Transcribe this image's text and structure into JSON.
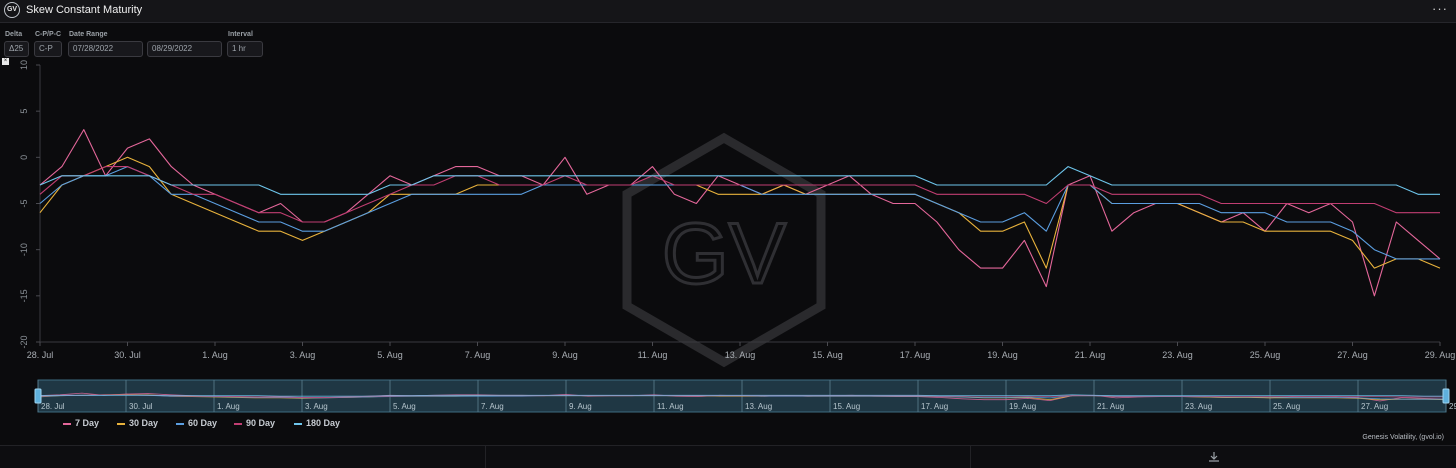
{
  "app": {
    "logo_text": "GV",
    "title": "Skew Constant Maturity",
    "more_label": "···"
  },
  "controls": {
    "delta_label": "Delta",
    "delta_value": "Δ25",
    "cp_label": "C-P/P-C",
    "cp_value": "C-P",
    "date_label": "Date Range",
    "date_start": "07/28/2022",
    "date_end": "08/29/2022",
    "interval_label": "Interval",
    "interval_value": "1 hr",
    "reset_label": "×"
  },
  "watermark": "GV",
  "credit": "Genesis Volatility, (gvol.io)",
  "colors": {
    "7d": "#e4679a",
    "30d": "#e8b23c",
    "60d": "#5b9ee0",
    "90d": "#c13e72",
    "180d": "#6ec6ec"
  },
  "chart_data": {
    "type": "line",
    "title": "",
    "xlabel": "",
    "ylabel": "",
    "xlim": [
      0,
      32
    ],
    "ylim": [
      -20,
      10
    ],
    "yticks": [
      10,
      5,
      0,
      -5,
      -10,
      -15,
      -20
    ],
    "xticks": [
      {
        "day": 0,
        "label": "28. Jul"
      },
      {
        "day": 2,
        "label": "30. Jul"
      },
      {
        "day": 4,
        "label": "1. Aug"
      },
      {
        "day": 6,
        "label": "3. Aug"
      },
      {
        "day": 8,
        "label": "5. Aug"
      },
      {
        "day": 10,
        "label": "7. Aug"
      },
      {
        "day": 12,
        "label": "9. Aug"
      },
      {
        "day": 14,
        "label": "11. Aug"
      },
      {
        "day": 16,
        "label": "13. Aug"
      },
      {
        "day": 18,
        "label": "15. Aug"
      },
      {
        "day": 20,
        "label": "17. Aug"
      },
      {
        "day": 22,
        "label": "19. Aug"
      },
      {
        "day": 24,
        "label": "21. Aug"
      },
      {
        "day": 26,
        "label": "23. Aug"
      },
      {
        "day": 28,
        "label": "25. Aug"
      },
      {
        "day": 30,
        "label": "27. Aug"
      },
      {
        "day": 32,
        "label": "29. Aug"
      }
    ],
    "x_days": [
      0,
      0.5,
      1,
      1.5,
      2,
      2.5,
      3,
      3.5,
      4,
      4.5,
      5,
      5.5,
      6,
      6.5,
      7,
      7.5,
      8,
      8.5,
      9,
      9.5,
      10,
      10.5,
      11,
      11.5,
      12,
      12.5,
      13,
      13.5,
      14,
      14.5,
      15,
      15.5,
      16,
      16.5,
      17,
      17.5,
      18,
      18.5,
      19,
      19.5,
      20,
      20.5,
      21,
      21.5,
      22,
      22.5,
      23,
      23.5,
      24,
      24.5,
      25,
      25.5,
      26,
      26.5,
      27,
      27.5,
      28,
      28.5,
      29,
      29.5,
      30,
      30.5,
      31,
      31.5,
      32
    ],
    "series": [
      {
        "name": "7 Day",
        "key": "7d",
        "values": [
          -3,
          -1,
          3,
          -2,
          1,
          2,
          -1,
          -3,
          -4,
          -5,
          -6,
          -5,
          -7,
          -7,
          -6,
          -4,
          -2,
          -3,
          -2,
          -1,
          -1,
          -2,
          -2,
          -3,
          0,
          -4,
          -3,
          -3,
          -1,
          -4,
          -5,
          -2,
          -3,
          -4,
          -3,
          -4,
          -3,
          -2,
          -4,
          -5,
          -5,
          -7,
          -10,
          -12,
          -12,
          -9,
          -14,
          -3,
          -2,
          -8,
          -6,
          -5,
          -5,
          -6,
          -7,
          -6,
          -8,
          -5,
          -6,
          -5,
          -7,
          -15,
          -7,
          -9,
          -11
        ]
      },
      {
        "name": "30 Day",
        "key": "30d",
        "values": [
          -6,
          -3,
          -2,
          -1,
          0,
          -1,
          -4,
          -5,
          -6,
          -7,
          -8,
          -8,
          -9,
          -8,
          -7,
          -6,
          -4,
          -4,
          -4,
          -4,
          -3,
          -3,
          -3,
          -3,
          -3,
          -3,
          -3,
          -3,
          -3,
          -3,
          -3,
          -4,
          -4,
          -4,
          -3,
          -4,
          -4,
          -4,
          -4,
          -4,
          -4,
          -5,
          -6,
          -8,
          -8,
          -7,
          -12,
          -3,
          -3,
          -5,
          -5,
          -5,
          -5,
          -6,
          -7,
          -7,
          -8,
          -8,
          -8,
          -8,
          -9,
          -12,
          -11,
          -11,
          -12
        ]
      },
      {
        "name": "60 Day",
        "key": "60d",
        "values": [
          -5,
          -3,
          -2,
          -2,
          -1,
          -2,
          -4,
          -4,
          -5,
          -6,
          -7,
          -7,
          -8,
          -8,
          -7,
          -6,
          -5,
          -4,
          -4,
          -4,
          -4,
          -4,
          -4,
          -3,
          -3,
          -3,
          -3,
          -3,
          -3,
          -3,
          -3,
          -3,
          -3,
          -4,
          -4,
          -4,
          -4,
          -4,
          -4,
          -4,
          -4,
          -5,
          -6,
          -7,
          -7,
          -6,
          -8,
          -3,
          -3,
          -5,
          -5,
          -5,
          -5,
          -5,
          -6,
          -6,
          -6,
          -7,
          -7,
          -7,
          -8,
          -10,
          -11,
          -11,
          -11
        ]
      },
      {
        "name": "90 Day",
        "key": "90d",
        "values": [
          -4,
          -2,
          -2,
          -1,
          -1,
          -2,
          -3,
          -4,
          -4,
          -5,
          -6,
          -6,
          -7,
          -7,
          -6,
          -5,
          -4,
          -3,
          -3,
          -2,
          -2,
          -3,
          -3,
          -3,
          -2,
          -3,
          -3,
          -3,
          -2,
          -3,
          -3,
          -3,
          -3,
          -3,
          -3,
          -3,
          -3,
          -3,
          -3,
          -3,
          -3,
          -4,
          -4,
          -4,
          -4,
          -4,
          -5,
          -3,
          -3,
          -4,
          -4,
          -4,
          -4,
          -4,
          -5,
          -5,
          -5,
          -5,
          -5,
          -5,
          -5,
          -5,
          -6,
          -6,
          -6
        ]
      },
      {
        "name": "180 Day",
        "key": "180d",
        "values": [
          -3,
          -2,
          -2,
          -2,
          -2,
          -2,
          -3,
          -3,
          -3,
          -3,
          -3,
          -4,
          -4,
          -4,
          -4,
          -4,
          -3,
          -3,
          -2,
          -2,
          -2,
          -2,
          -2,
          -2,
          -2,
          -2,
          -2,
          -2,
          -2,
          -2,
          -2,
          -2,
          -2,
          -2,
          -2,
          -2,
          -2,
          -2,
          -2,
          -2,
          -2,
          -3,
          -3,
          -3,
          -3,
          -3,
          -3,
          -1,
          -2,
          -3,
          -3,
          -3,
          -3,
          -3,
          -3,
          -3,
          -3,
          -3,
          -3,
          -3,
          -3,
          -3,
          -3,
          -4,
          -4
        ]
      }
    ]
  }
}
